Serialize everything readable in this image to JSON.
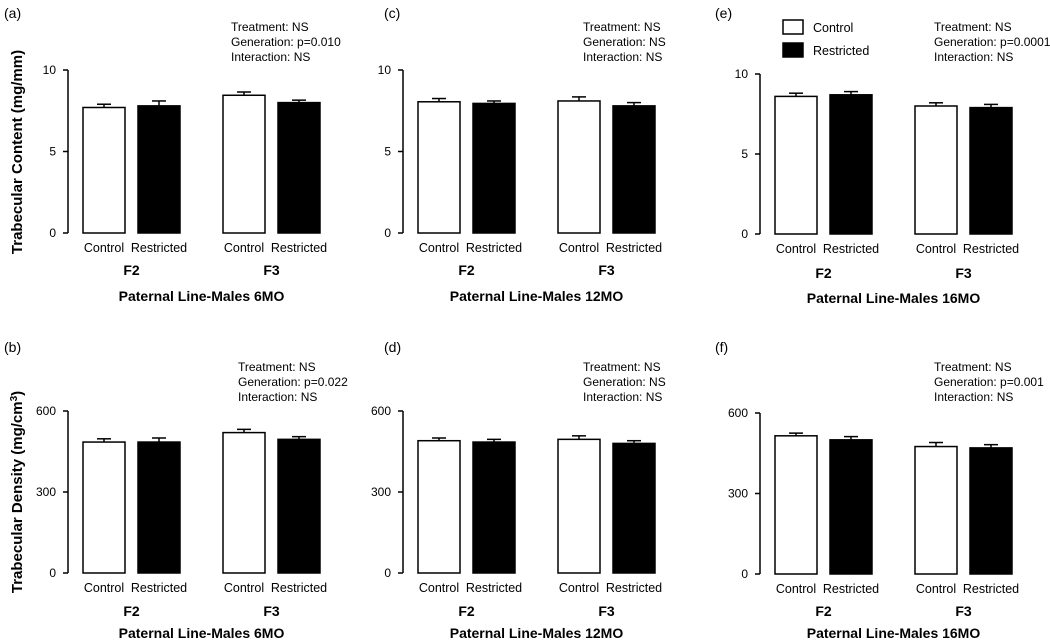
{
  "figure": {
    "ylabels": [
      "Trabecular Content (mg/mm)",
      "Trabecular Density (mg/cm³)"
    ],
    "legend": {
      "entries": [
        {
          "label": "Control",
          "color": "#ffffff"
        },
        {
          "label": "Restricted",
          "color": "#000000"
        }
      ]
    }
  },
  "chart_data": [
    {
      "type": "bar",
      "panel": "(a)",
      "xlabel": "Paternal Line-Males 6MO",
      "ylabel": "Trabecular Content (mg/mm)",
      "ylim": [
        0,
        10
      ],
      "yticks": [
        0,
        5,
        10
      ],
      "groups": [
        "F2",
        "F3"
      ],
      "categories": [
        "Control",
        "Restricted"
      ],
      "series": [
        {
          "name": "Control",
          "color": "#ffffff",
          "values": [
            7.7,
            8.45
          ],
          "errors": [
            0.2,
            0.2
          ]
        },
        {
          "name": "Restricted",
          "color": "#000000",
          "values": [
            7.8,
            8.0
          ],
          "errors": [
            0.3,
            0.15
          ]
        }
      ],
      "annotations": [
        "Treatment: NS",
        "Generation: p=0.010",
        "Interaction: NS"
      ]
    },
    {
      "type": "bar",
      "panel": "(c)",
      "xlabel": "Paternal Line-Males 12MO",
      "ylabel": "",
      "ylim": [
        0,
        10
      ],
      "yticks": [
        0,
        5,
        10
      ],
      "groups": [
        "F2",
        "F3"
      ],
      "categories": [
        "Control",
        "Restricted"
      ],
      "series": [
        {
          "name": "Control",
          "color": "#ffffff",
          "values": [
            8.05,
            8.1
          ],
          "errors": [
            0.2,
            0.25
          ]
        },
        {
          "name": "Restricted",
          "color": "#000000",
          "values": [
            7.95,
            7.8
          ],
          "errors": [
            0.15,
            0.2
          ]
        }
      ],
      "annotations": [
        "Treatment: NS",
        "Generation: NS",
        "Interaction: NS"
      ]
    },
    {
      "type": "bar",
      "panel": "(e)",
      "xlabel": "Paternal Line-Males 16MO",
      "ylabel": "",
      "ylim": [
        0,
        10
      ],
      "yticks": [
        0,
        5,
        10
      ],
      "groups": [
        "F2",
        "F3"
      ],
      "categories": [
        "Control",
        "Restricted"
      ],
      "series": [
        {
          "name": "Control",
          "color": "#ffffff",
          "values": [
            8.6,
            8.0
          ],
          "errors": [
            0.2,
            0.2
          ]
        },
        {
          "name": "Restricted",
          "color": "#000000",
          "values": [
            8.7,
            7.9
          ],
          "errors": [
            0.2,
            0.2
          ]
        }
      ],
      "annotations": [
        "Treatment: NS",
        "Generation: p=0.0001",
        "Interaction: NS"
      ]
    },
    {
      "type": "bar",
      "panel": "(b)",
      "xlabel": "Paternal Line-Males 6MO",
      "ylabel": "Trabecular Density (mg/cm³)",
      "ylim": [
        0,
        600
      ],
      "yticks": [
        0,
        300,
        600
      ],
      "groups": [
        "F2",
        "F3"
      ],
      "categories": [
        "Control",
        "Restricted"
      ],
      "series": [
        {
          "name": "Control",
          "color": "#ffffff",
          "values": [
            485,
            520
          ],
          "errors": [
            12,
            12
          ]
        },
        {
          "name": "Restricted",
          "color": "#000000",
          "values": [
            485,
            495
          ],
          "errors": [
            15,
            10
          ]
        }
      ],
      "annotations": [
        "Treatment: NS",
        "Generation: p=0.022",
        "Interaction: NS"
      ]
    },
    {
      "type": "bar",
      "panel": "(d)",
      "xlabel": "Paternal Line-Males 12MO",
      "ylabel": "",
      "ylim": [
        0,
        600
      ],
      "yticks": [
        0,
        300,
        600
      ],
      "groups": [
        "F2",
        "F3"
      ],
      "categories": [
        "Control",
        "Restricted"
      ],
      "series": [
        {
          "name": "Control",
          "color": "#ffffff",
          "values": [
            490,
            495
          ],
          "errors": [
            10,
            13
          ]
        },
        {
          "name": "Restricted",
          "color": "#000000",
          "values": [
            485,
            480
          ],
          "errors": [
            10,
            10
          ]
        }
      ],
      "annotations": [
        "Treatment: NS",
        "Generation: NS",
        "Interaction: NS"
      ]
    },
    {
      "type": "bar",
      "panel": "(f)",
      "xlabel": "Paternal Line-Males 16MO",
      "ylabel": "",
      "ylim": [
        0,
        600
      ],
      "yticks": [
        0,
        300,
        600
      ],
      "groups": [
        "F2",
        "F3"
      ],
      "categories": [
        "Control",
        "Restricted"
      ],
      "series": [
        {
          "name": "Control",
          "color": "#ffffff",
          "values": [
            515,
            475
          ],
          "errors": [
            10,
            15
          ]
        },
        {
          "name": "Restricted",
          "color": "#000000",
          "values": [
            500,
            470
          ],
          "errors": [
            12,
            12
          ]
        }
      ],
      "annotations": [
        "Treatment: NS",
        "Generation: p=0.001",
        "Interaction: NS"
      ]
    }
  ]
}
